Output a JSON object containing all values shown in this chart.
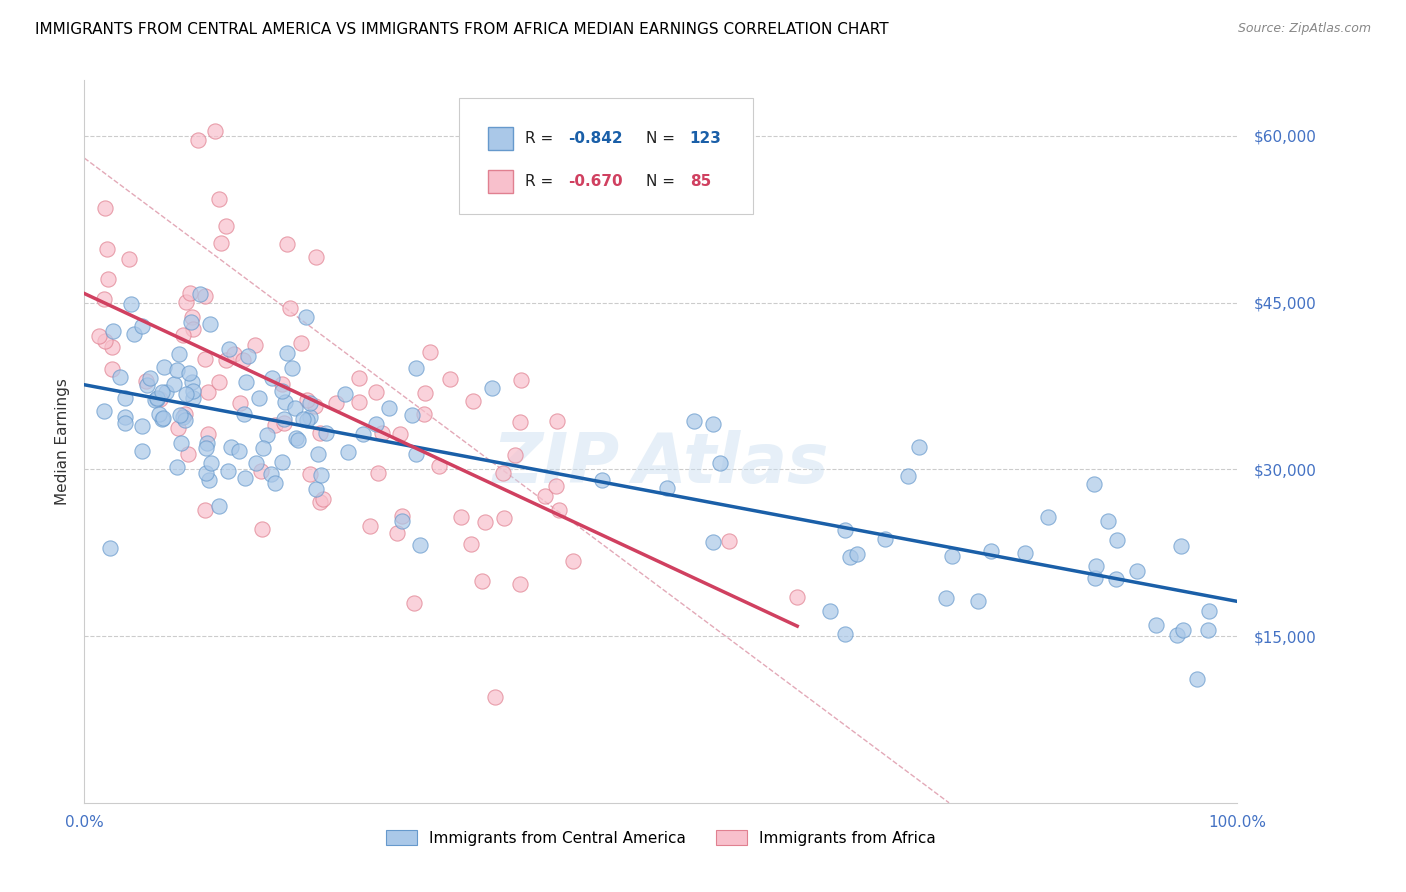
{
  "title": "IMMIGRANTS FROM CENTRAL AMERICA VS IMMIGRANTS FROM AFRICA MEDIAN EARNINGS CORRELATION CHART",
  "source": "Source: ZipAtlas.com",
  "ylabel": "Median Earnings",
  "yticks": [
    0,
    15000,
    30000,
    45000,
    60000
  ],
  "ytick_labels": [
    "",
    "$15,000",
    "$30,000",
    "$45,000",
    "$60,000"
  ],
  "xlim": [
    0.0,
    1.0
  ],
  "ylim": [
    0,
    65000
  ],
  "blue_R": "-0.842",
  "blue_N": "123",
  "pink_R": "-0.670",
  "pink_N": "85",
  "blue_face_color": "#aac8e8",
  "blue_edge_color": "#6699cc",
  "blue_line_color": "#1a5fa8",
  "pink_face_color": "#f8c0cc",
  "pink_edge_color": "#e08090",
  "pink_line_color": "#d04060",
  "dash_line_color": "#e0a0b0",
  "legend_label_blue": "Immigrants from Central America",
  "legend_label_pink": "Immigrants from Africa",
  "title_fontsize": 11,
  "source_fontsize": 9,
  "axis_label_color": "#4472c4",
  "grid_color": "#cccccc",
  "blue_seed": 42,
  "pink_seed": 7
}
